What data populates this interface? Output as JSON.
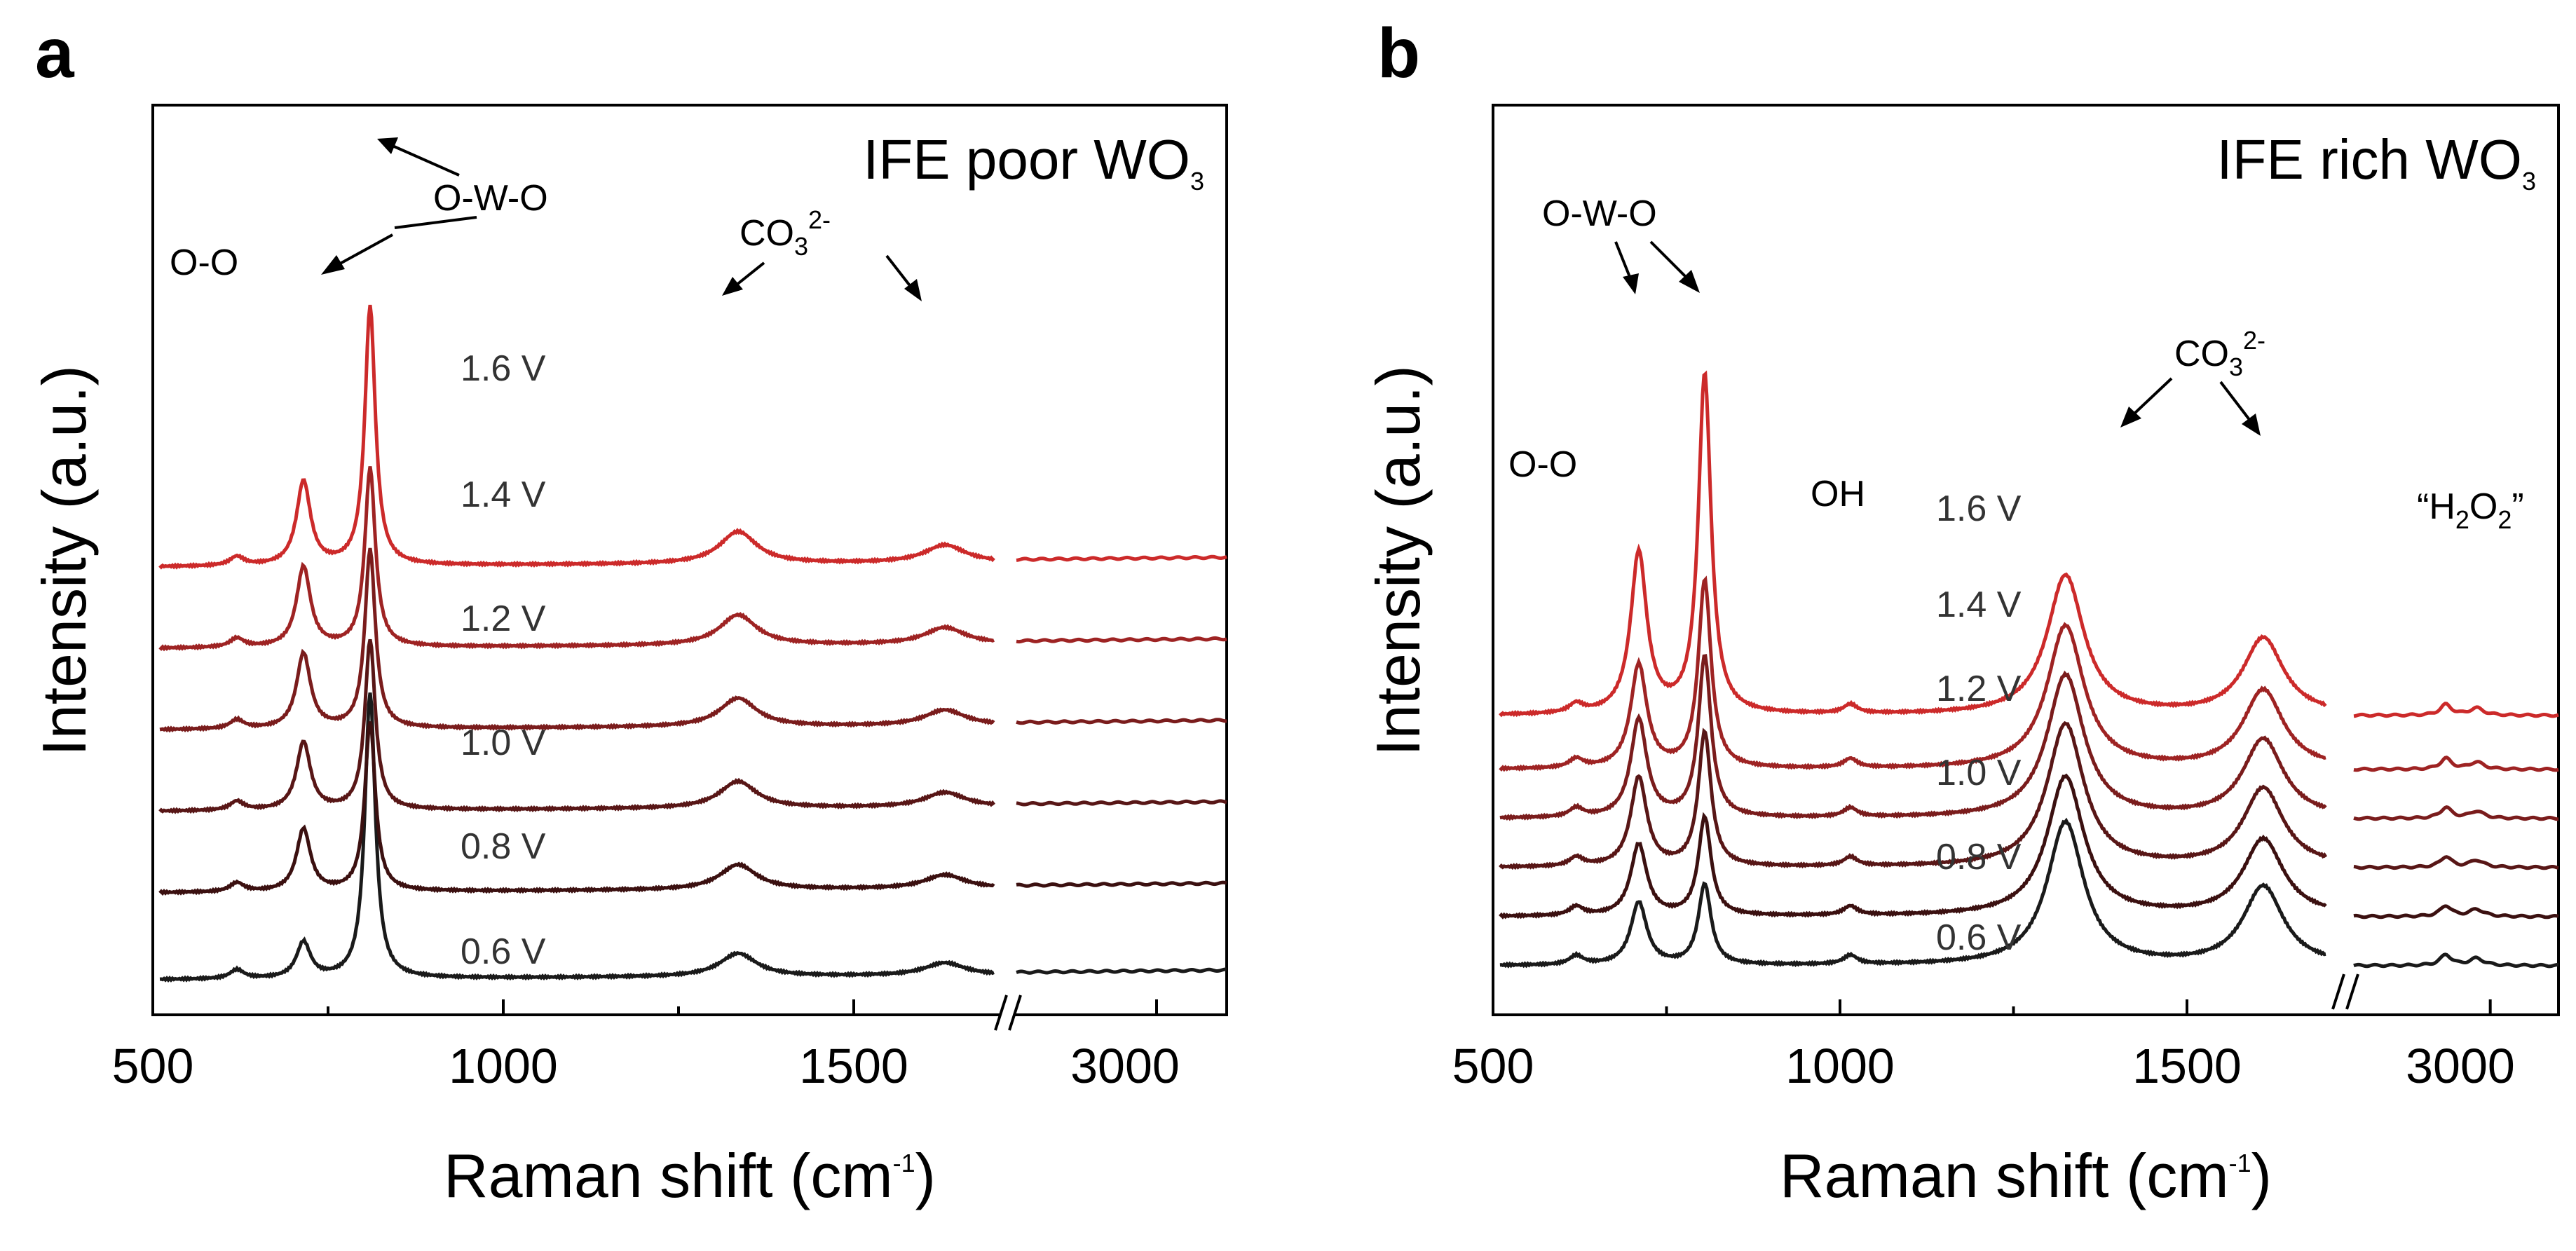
{
  "chart_data": [
    {
      "type": "line",
      "panel": "a",
      "title": "IFE poor WO",
      "title_sub": "3",
      "xlabel": "Raman shift (cm",
      "xlabel_sup": "-1",
      "xlabel_end": ")",
      "ylabel": "Intensity (a.u.)",
      "x_broken_axis": true,
      "xlim_segment1": [
        500,
        1750
      ],
      "xlim_segment2": [
        2600,
        3200
      ],
      "x_ticks": [
        "500",
        "1000",
        "1500",
        "3000"
      ],
      "y_ticks_labeled": false,
      "series": [
        {
          "name": "0.6 V",
          "color": "#1a1a1a",
          "offset": 0.0,
          "peaks": {
            "O-O": 0.2,
            "O-W-O": 1.6,
            "CO3": 0.13
          }
        },
        {
          "name": "0.8 V",
          "color": "#3b1010",
          "offset": 0.8,
          "peaks": {
            "O-O": 0.35,
            "O-W-O": 0.95,
            "CO3": 0.14
          }
        },
        {
          "name": "1.0 V",
          "color": "#581616",
          "offset": 1.55,
          "peaks": {
            "O-O": 0.38,
            "O-W-O": 0.95,
            "CO3": 0.15
          }
        },
        {
          "name": "1.2 V",
          "color": "#7a1c1c",
          "offset": 2.3,
          "peaks": {
            "O-O": 0.42,
            "O-W-O": 1.0,
            "CO3": 0.16
          }
        },
        {
          "name": "1.4 V",
          "color": "#9e2323",
          "offset": 3.05,
          "peaks": {
            "O-O": 0.45,
            "O-W-O": 1.0,
            "CO3": 0.17
          }
        },
        {
          "name": "1.6 V",
          "color": "#cc2a2a",
          "offset": 3.8,
          "peaks": {
            "O-O": 0.47,
            "O-W-O": 1.45,
            "CO3": 0.18
          }
        }
      ],
      "annotations": {
        "o_o": "O-O",
        "o_w_o": "O-W-O",
        "co3": "CO",
        "co3_sub": "3",
        "co3_sup": "2-"
      }
    },
    {
      "type": "line",
      "panel": "b",
      "title": "IFE rich WO",
      "title_sub": "3",
      "xlabel": "Raman shift (cm",
      "xlabel_sup": "-1",
      "xlabel_end": ")",
      "ylabel": "Intensity (a.u.)",
      "x_broken_axis": true,
      "xlim_segment1": [
        500,
        1750
      ],
      "xlim_segment2": [
        2600,
        3200
      ],
      "x_ticks": [
        "500",
        "1000",
        "1500",
        "3000"
      ],
      "y_ticks_labeled": false,
      "series": [
        {
          "name": "0.6 V",
          "color": "#1a1a1a",
          "offset": 0.0,
          "peaks": {
            "O-O": 0.35,
            "O-W-O": 0.45,
            "CO3": 0.8
          }
        },
        {
          "name": "0.8 V",
          "color": "#3b1010",
          "offset": 0.5,
          "peaks": {
            "O-O": 0.4,
            "O-W-O": 0.55,
            "CO3": 0.78
          }
        },
        {
          "name": "1.0 V",
          "color": "#581616",
          "offset": 1.0,
          "peaks": {
            "O-O": 0.5,
            "O-W-O": 0.75,
            "CO3": 0.8
          }
        },
        {
          "name": "1.2 V",
          "color": "#7a1c1c",
          "offset": 1.5,
          "peaks": {
            "O-O": 0.55,
            "O-W-O": 0.9,
            "CO3": 0.8
          }
        },
        {
          "name": "1.4 V",
          "color": "#9e2323",
          "offset": 2.0,
          "peaks": {
            "O-O": 0.58,
            "O-W-O": 1.05,
            "CO3": 0.8
          }
        },
        {
          "name": "1.6 V",
          "color": "#cc2a2a",
          "offset": 2.55,
          "peaks": {
            "O-O": 0.9,
            "O-W-O": 1.9,
            "CO3": 0.78
          }
        }
      ],
      "annotations": {
        "o_o": "O-O",
        "o_w_o": "O-W-O",
        "oh": "OH",
        "co3": "CO",
        "co3_sub": "3",
        "co3_sup": "2-",
        "h2o2_open": "“H",
        "h2o2_sub1": "2",
        "h2o2_mid": "O",
        "h2o2_sub2": "2",
        "h2o2_close": "”"
      }
    }
  ]
}
